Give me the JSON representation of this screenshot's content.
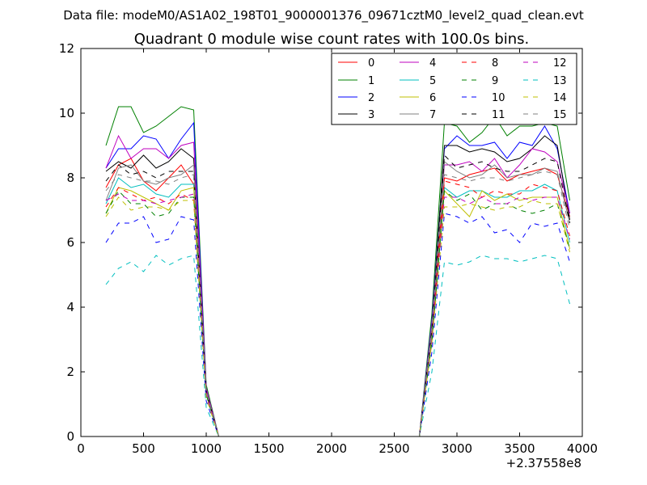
{
  "header": {
    "data_file": "Data file: modeM0/AS1A02_198T01_9000001376_09671cztM0_level2_quad_clean.evt"
  },
  "chart_data": {
    "type": "line",
    "title": "Quadrant 0 module wise count rates with 100.0s bins.",
    "xlabel": "",
    "ylabel": "",
    "x_offset_label": "+2.37558e8",
    "xlim": [
      0,
      4000
    ],
    "ylim": [
      0,
      12
    ],
    "xticks": [
      0,
      500,
      1000,
      1500,
      2000,
      2500,
      3000,
      3500,
      4000
    ],
    "yticks": [
      0,
      2,
      4,
      6,
      8,
      10,
      12
    ],
    "x": [
      200,
      300,
      400,
      500,
      600,
      700,
      800,
      900,
      1000,
      1100,
      1200,
      1300,
      1400,
      1500,
      1600,
      1700,
      1800,
      1900,
      2000,
      2100,
      2200,
      2300,
      2400,
      2500,
      2600,
      2700,
      2800,
      2900,
      3000,
      3100,
      3200,
      3300,
      3400,
      3500,
      3600,
      3700,
      3800,
      3900
    ],
    "legend_position": "top-right",
    "series": [
      {
        "name": "0",
        "color": "#ff0000",
        "dash": "solid",
        "values": [
          7.7,
          8.4,
          8.6,
          7.9,
          7.6,
          8.0,
          8.4,
          7.8,
          1.4,
          0,
          0,
          0,
          0,
          0,
          0,
          0,
          0,
          0,
          0,
          0,
          0,
          0,
          0,
          0,
          0,
          0,
          3.3,
          8.0,
          7.9,
          8.1,
          8.2,
          8.3,
          7.9,
          8.1,
          8.2,
          8.3,
          8.1,
          6.8
        ]
      },
      {
        "name": "1",
        "color": "#008000",
        "dash": "solid",
        "values": [
          9.0,
          10.2,
          10.2,
          9.4,
          9.6,
          9.9,
          10.2,
          10.1,
          1.6,
          0,
          0,
          0,
          0,
          0,
          0,
          0,
          0,
          0,
          0,
          0,
          0,
          0,
          0,
          0,
          0,
          0,
          3.8,
          9.7,
          9.6,
          9.1,
          9.4,
          9.9,
          9.3,
          9.6,
          9.6,
          9.7,
          9.6,
          7.3
        ]
      },
      {
        "name": "2",
        "color": "#0000ff",
        "dash": "solid",
        "values": [
          8.3,
          8.9,
          8.9,
          9.3,
          9.2,
          8.6,
          9.2,
          9.7,
          1.5,
          0,
          0,
          0,
          0,
          0,
          0,
          0,
          0,
          0,
          0,
          0,
          0,
          0,
          0,
          0,
          0,
          0,
          3.6,
          8.9,
          9.3,
          9.0,
          9.0,
          9.1,
          8.6,
          9.1,
          9.0,
          9.6,
          8.9,
          6.9
        ]
      },
      {
        "name": "3",
        "color": "#000000",
        "dash": "solid",
        "values": [
          8.2,
          8.5,
          8.3,
          8.7,
          8.3,
          8.5,
          8.9,
          8.6,
          1.4,
          0,
          0,
          0,
          0,
          0,
          0,
          0,
          0,
          0,
          0,
          0,
          0,
          0,
          0,
          0,
          0,
          0,
          3.4,
          9.0,
          9.0,
          8.8,
          8.9,
          8.8,
          8.5,
          8.6,
          8.9,
          9.3,
          9.0,
          6.7
        ]
      },
      {
        "name": "4",
        "color": "#bf00bf",
        "dash": "solid",
        "values": [
          8.3,
          9.3,
          8.6,
          8.9,
          8.9,
          8.6,
          9.0,
          9.1,
          1.5,
          0,
          0,
          0,
          0,
          0,
          0,
          0,
          0,
          0,
          0,
          0,
          0,
          0,
          0,
          0,
          0,
          0,
          3.5,
          8.4,
          8.4,
          8.5,
          8.2,
          8.6,
          8.0,
          8.4,
          8.9,
          8.8,
          8.5,
          6.9
        ]
      },
      {
        "name": "5",
        "color": "#00bfbf",
        "dash": "solid",
        "values": [
          7.2,
          8.0,
          7.7,
          7.8,
          7.5,
          7.4,
          7.8,
          7.8,
          1.3,
          0,
          0,
          0,
          0,
          0,
          0,
          0,
          0,
          0,
          0,
          0,
          0,
          0,
          0,
          0,
          0,
          0,
          3.1,
          7.7,
          7.4,
          7.6,
          7.6,
          7.4,
          7.4,
          7.6,
          7.6,
          7.8,
          7.6,
          6.0
        ]
      },
      {
        "name": "6",
        "color": "#bfbf00",
        "dash": "solid",
        "values": [
          6.9,
          7.7,
          7.6,
          7.4,
          7.2,
          7.0,
          7.6,
          7.7,
          1.3,
          0,
          0,
          0,
          0,
          0,
          0,
          0,
          0,
          0,
          0,
          0,
          0,
          0,
          0,
          0,
          0,
          0,
          3.0,
          7.6,
          7.2,
          6.8,
          7.6,
          7.3,
          7.5,
          7.3,
          7.4,
          7.4,
          7.4,
          5.8
        ]
      },
      {
        "name": "7",
        "color": "#808080",
        "dash": "solid",
        "values": [
          7.3,
          8.3,
          8.4,
          7.9,
          7.8,
          8.0,
          8.1,
          8.4,
          1.4,
          0,
          0,
          0,
          0,
          0,
          0,
          0,
          0,
          0,
          0,
          0,
          0,
          0,
          0,
          0,
          0,
          0,
          3.4,
          8.5,
          8.2,
          8.0,
          8.1,
          8.4,
          8.0,
          8.1,
          8.1,
          8.3,
          8.2,
          6.6
        ]
      },
      {
        "name": "8",
        "color": "#ff0000",
        "dash": "dashed",
        "values": [
          7.1,
          7.7,
          7.5,
          7.3,
          7.4,
          7.2,
          7.5,
          7.3,
          1.3,
          0,
          0,
          0,
          0,
          0,
          0,
          0,
          0,
          0,
          0,
          0,
          0,
          0,
          0,
          0,
          0,
          0,
          3.0,
          7.9,
          7.8,
          7.7,
          7.4,
          7.6,
          7.5,
          7.5,
          7.8,
          7.7,
          7.6,
          6.2
        ]
      },
      {
        "name": "9",
        "color": "#008000",
        "dash": "dashed",
        "values": [
          6.9,
          7.6,
          7.2,
          7.2,
          6.8,
          6.9,
          7.4,
          7.4,
          1.3,
          0,
          0,
          0,
          0,
          0,
          0,
          0,
          0,
          0,
          0,
          0,
          0,
          0,
          0,
          0,
          0,
          0,
          2.9,
          7.6,
          7.3,
          7.5,
          7.0,
          7.2,
          7.2,
          7.0,
          6.9,
          7.0,
          7.2,
          5.8
        ]
      },
      {
        "name": "10",
        "color": "#0000ff",
        "dash": "dashed",
        "values": [
          6.0,
          6.6,
          6.6,
          6.8,
          6.0,
          6.1,
          6.8,
          6.7,
          1.1,
          0,
          0,
          0,
          0,
          0,
          0,
          0,
          0,
          0,
          0,
          0,
          0,
          0,
          0,
          0,
          0,
          0,
          2.6,
          6.9,
          6.8,
          6.6,
          6.8,
          6.3,
          6.4,
          6.0,
          6.6,
          6.5,
          6.6,
          5.4
        ]
      },
      {
        "name": "11",
        "color": "#000000",
        "dash": "dashed",
        "values": [
          7.9,
          8.4,
          8.1,
          8.2,
          8.0,
          8.2,
          8.2,
          8.2,
          1.4,
          0,
          0,
          0,
          0,
          0,
          0,
          0,
          0,
          0,
          0,
          0,
          0,
          0,
          0,
          0,
          0,
          0,
          3.3,
          8.7,
          8.3,
          8.4,
          8.5,
          8.3,
          8.2,
          8.2,
          8.4,
          8.6,
          8.5,
          6.6
        ]
      },
      {
        "name": "12",
        "color": "#bf00bf",
        "dash": "dashed",
        "values": [
          7.3,
          7.5,
          7.3,
          7.3,
          7.2,
          7.3,
          7.4,
          7.5,
          1.3,
          0,
          0,
          0,
          0,
          0,
          0,
          0,
          0,
          0,
          0,
          0,
          0,
          0,
          0,
          0,
          0,
          0,
          3.0,
          7.4,
          7.4,
          7.2,
          7.4,
          7.2,
          7.2,
          7.4,
          7.3,
          7.4,
          7.4,
          6.1
        ]
      },
      {
        "name": "13",
        "color": "#00bfbf",
        "dash": "dashed",
        "values": [
          4.7,
          5.2,
          5.4,
          5.1,
          5.6,
          5.3,
          5.5,
          5.6,
          0.9,
          0,
          0,
          0,
          0,
          0,
          0,
          0,
          0,
          0,
          0,
          0,
          0,
          0,
          0,
          0,
          0,
          0,
          2.0,
          5.4,
          5.3,
          5.4,
          5.6,
          5.5,
          5.5,
          5.4,
          5.5,
          5.6,
          5.5,
          4.1
        ]
      },
      {
        "name": "14",
        "color": "#bfbf00",
        "dash": "dashed",
        "values": [
          6.8,
          7.4,
          7.0,
          7.1,
          7.1,
          7.0,
          7.3,
          7.3,
          1.2,
          0,
          0,
          0,
          0,
          0,
          0,
          0,
          0,
          0,
          0,
          0,
          0,
          0,
          0,
          0,
          0,
          0,
          2.9,
          7.1,
          7.1,
          7.2,
          7.1,
          7.0,
          7.1,
          7.1,
          7.3,
          7.2,
          7.2,
          5.7
        ]
      },
      {
        "name": "15",
        "color": "#808080",
        "dash": "dashed",
        "values": [
          7.6,
          8.1,
          8.0,
          7.9,
          7.9,
          7.8,
          8.0,
          8.1,
          1.4,
          0,
          0,
          0,
          0,
          0,
          0,
          0,
          0,
          0,
          0,
          0,
          0,
          0,
          0,
          0,
          0,
          0,
          3.2,
          8.1,
          8.0,
          7.9,
          8.0,
          8.0,
          7.9,
          8.0,
          8.1,
          8.2,
          8.1,
          6.4
        ]
      }
    ]
  }
}
